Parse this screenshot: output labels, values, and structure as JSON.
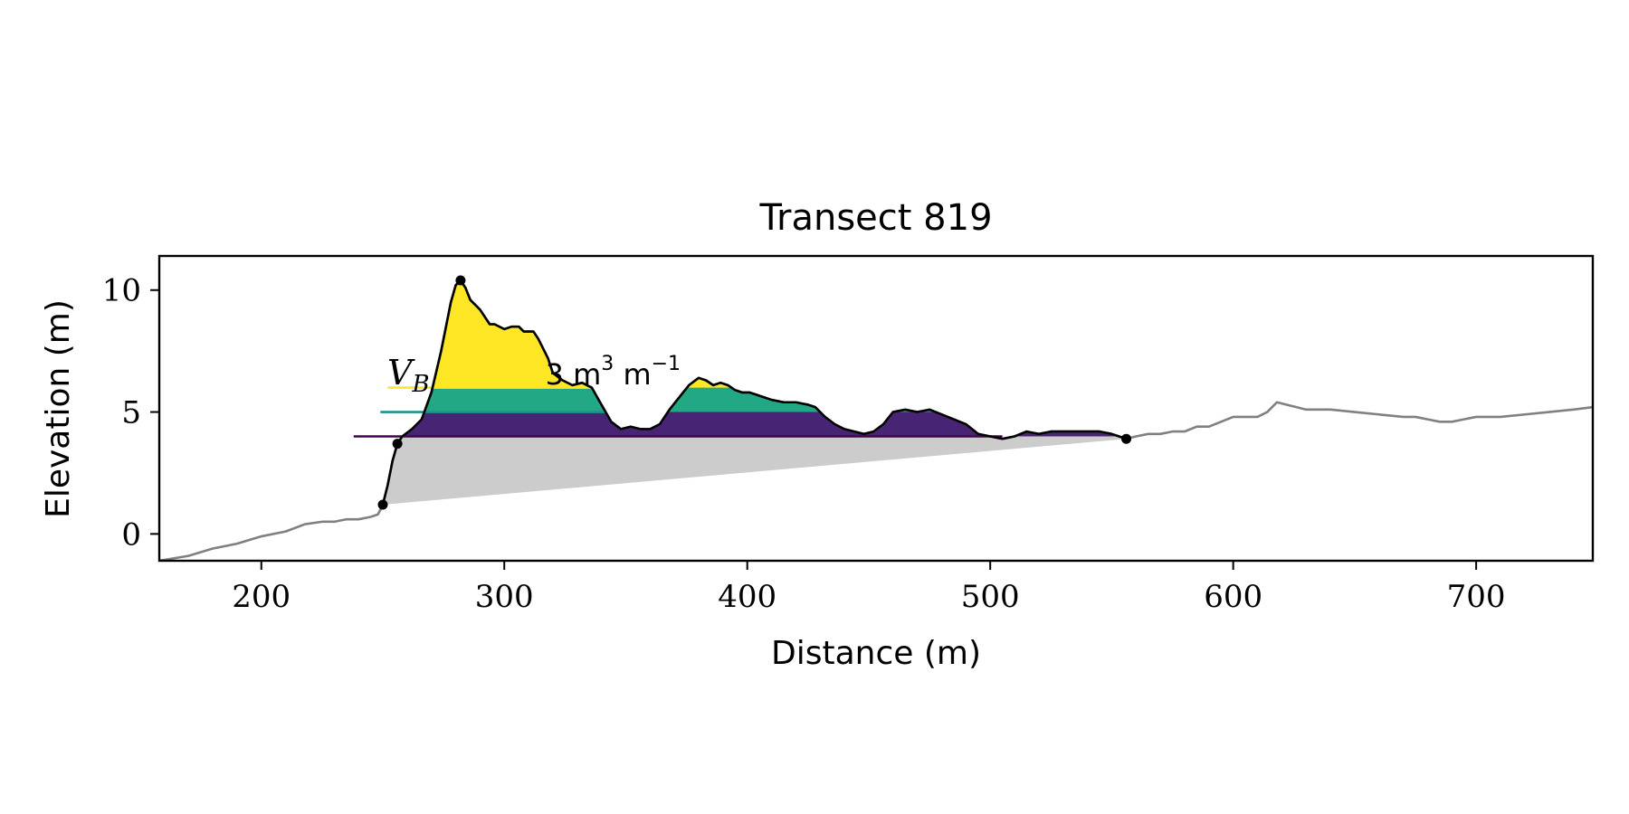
{
  "chart_data": {
    "type": "area",
    "title": "Transect 819",
    "xlabel": "Distance (m)",
    "ylabel": "Elevation (m)",
    "xlim": [
      158,
      748
    ],
    "ylim": [
      -1.1,
      11.4
    ],
    "xticks": [
      200,
      300,
      400,
      500,
      600,
      700
    ],
    "yticks": [
      0,
      5,
      10
    ],
    "grid": false,
    "legend": "none",
    "annotation": {
      "var": "V",
      "sub": "B",
      "text": "3 m",
      "exp1": "3",
      "unit2": " m",
      "exp2": "−1"
    },
    "profile": {
      "x": [
        158,
        170,
        180,
        190,
        200,
        210,
        218,
        225,
        230,
        235,
        240,
        245,
        248,
        250,
        252,
        254,
        256,
        258,
        262,
        266,
        270,
        274,
        278,
        280,
        282,
        284,
        286,
        290,
        294,
        296,
        300,
        303,
        306,
        308,
        312,
        314,
        318,
        320,
        324,
        328,
        332,
        336,
        340,
        344,
        348,
        352,
        356,
        360,
        364,
        368,
        372,
        376,
        380,
        383,
        386,
        389,
        392,
        395,
        398,
        401,
        404,
        407,
        410,
        415,
        420,
        425,
        428,
        432,
        436,
        440,
        444,
        448,
        452,
        456,
        460,
        465,
        470,
        475,
        480,
        485,
        490,
        495,
        500,
        505,
        510,
        515,
        520,
        525,
        530,
        535,
        540,
        545,
        550,
        553,
        556,
        560,
        565,
        570,
        575,
        580,
        585,
        590,
        595,
        600,
        605,
        610,
        614,
        618,
        622,
        626,
        630,
        640,
        650,
        660,
        670,
        675,
        680,
        685,
        690,
        695,
        700,
        710,
        720,
        730,
        740,
        748
      ],
      "y": [
        -1.1,
        -0.9,
        -0.6,
        -0.4,
        -0.1,
        0.1,
        0.4,
        0.5,
        0.5,
        0.6,
        0.6,
        0.7,
        0.8,
        1.2,
        2.0,
        3.0,
        3.7,
        4.0,
        4.3,
        4.7,
        5.8,
        7.5,
        9.5,
        10.2,
        10.4,
        10.1,
        9.6,
        9.2,
        8.6,
        8.6,
        8.4,
        8.5,
        8.5,
        8.3,
        8.3,
        8.0,
        7.2,
        6.6,
        6.3,
        6.1,
        6.2,
        6.0,
        5.3,
        4.6,
        4.3,
        4.4,
        4.3,
        4.3,
        4.5,
        5.1,
        5.6,
        6.1,
        6.4,
        6.3,
        6.1,
        6.2,
        6.1,
        5.9,
        5.8,
        5.8,
        5.7,
        5.6,
        5.5,
        5.4,
        5.4,
        5.3,
        5.2,
        4.8,
        4.5,
        4.3,
        4.2,
        4.1,
        4.2,
        4.5,
        5.0,
        5.1,
        5.0,
        5.1,
        4.9,
        4.7,
        4.5,
        4.1,
        4.0,
        3.9,
        4.0,
        4.2,
        4.1,
        4.2,
        4.2,
        4.2,
        4.2,
        4.2,
        4.1,
        4.0,
        3.9,
        4.0,
        4.1,
        4.1,
        4.2,
        4.2,
        4.4,
        4.4,
        4.6,
        4.8,
        4.8,
        4.8,
        5.0,
        5.4,
        5.3,
        5.2,
        5.1,
        5.1,
        5.0,
        4.9,
        4.8,
        4.8,
        4.7,
        4.6,
        4.6,
        4.7,
        4.8,
        4.8,
        4.9,
        5.0,
        5.1,
        5.2
      ]
    },
    "beach_span": [
      250,
      556
    ],
    "markers": [
      {
        "x": 250,
        "y": 1.2
      },
      {
        "x": 256,
        "y": 3.7
      },
      {
        "x": 282,
        "y": 10.4
      },
      {
        "x": 556,
        "y": 3.9
      }
    ],
    "levels": [
      {
        "y": 4.0,
        "x_start": 238,
        "x_end": 505,
        "color": "#440154",
        "fill": "#482475"
      },
      {
        "y": 5.0,
        "x_start": 249,
        "x_end": 342,
        "color": "#21918c",
        "fill": "#22a884"
      },
      {
        "y": 6.0,
        "x_start": 252,
        "x_end": 336,
        "color": "#fde725",
        "fill": "#fde725"
      }
    ],
    "colors": {
      "profile_context": "#808080",
      "profile_main": "#000000",
      "base_fill": "#cccccc"
    }
  }
}
